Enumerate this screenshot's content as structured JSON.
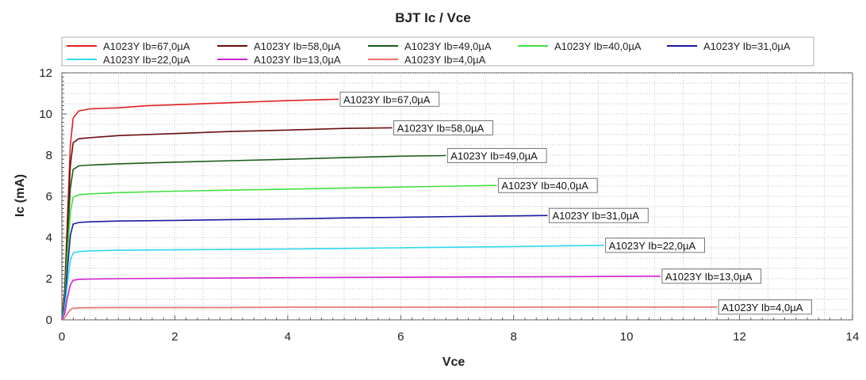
{
  "chart_data": {
    "type": "line",
    "title": "BJT Ic / Vce",
    "xlabel": "Vce",
    "ylabel": "Ic (mA)",
    "xlim": [
      0,
      14
    ],
    "ylim": [
      0,
      12
    ],
    "xticks": [
      0,
      2,
      4,
      6,
      8,
      10,
      12,
      14
    ],
    "yticks": [
      0,
      2,
      4,
      6,
      8,
      10,
      12
    ],
    "grid": true,
    "legend_position": "top",
    "series": [
      {
        "name": "A1023Y Ib=67,0µA",
        "color": "#e02020",
        "label": "A1023Y Ib=67,0µA",
        "points": [
          [
            0,
            0
          ],
          [
            0.05,
            1.5
          ],
          [
            0.1,
            5
          ],
          [
            0.15,
            8.5
          ],
          [
            0.2,
            9.8
          ],
          [
            0.3,
            10.15
          ],
          [
            0.5,
            10.25
          ],
          [
            1,
            10.3
          ],
          [
            1.5,
            10.4
          ],
          [
            2,
            10.45
          ],
          [
            3,
            10.55
          ],
          [
            4,
            10.65
          ],
          [
            4.9,
            10.72
          ]
        ]
      },
      {
        "name": "A1023Y Ib=58,0µA",
        "color": "#6b0f0f",
        "label": "A1023Y Ib=58,0µA",
        "points": [
          [
            0,
            0
          ],
          [
            0.05,
            1.3
          ],
          [
            0.1,
            4.5
          ],
          [
            0.15,
            7.5
          ],
          [
            0.2,
            8.6
          ],
          [
            0.3,
            8.8
          ],
          [
            0.5,
            8.85
          ],
          [
            1,
            8.95
          ],
          [
            2,
            9.05
          ],
          [
            3,
            9.15
          ],
          [
            4,
            9.22
          ],
          [
            5,
            9.3
          ],
          [
            5.85,
            9.33
          ]
        ]
      },
      {
        "name": "A1023Y Ib=49,0µA",
        "color": "#1a5c1a",
        "label": "A1023Y Ib=49,0µA",
        "points": [
          [
            0,
            0
          ],
          [
            0.05,
            1.1
          ],
          [
            0.1,
            3.8
          ],
          [
            0.15,
            6.4
          ],
          [
            0.2,
            7.3
          ],
          [
            0.3,
            7.48
          ],
          [
            0.5,
            7.52
          ],
          [
            1,
            7.58
          ],
          [
            2,
            7.66
          ],
          [
            3,
            7.73
          ],
          [
            4,
            7.8
          ],
          [
            5,
            7.88
          ],
          [
            6,
            7.95
          ],
          [
            6.8,
            7.98
          ]
        ]
      },
      {
        "name": "A1023Y Ib=40,0µA",
        "color": "#40e040",
        "label": "A1023Y Ib=40,0µA",
        "points": [
          [
            0,
            0
          ],
          [
            0.05,
            0.9
          ],
          [
            0.1,
            3.2
          ],
          [
            0.15,
            5.2
          ],
          [
            0.2,
            5.95
          ],
          [
            0.3,
            6.08
          ],
          [
            0.5,
            6.12
          ],
          [
            1,
            6.18
          ],
          [
            2,
            6.25
          ],
          [
            3,
            6.3
          ],
          [
            4,
            6.35
          ],
          [
            5,
            6.4
          ],
          [
            6,
            6.45
          ],
          [
            7,
            6.5
          ],
          [
            7.7,
            6.53
          ]
        ]
      },
      {
        "name": "A1023Y Ib=31,0µA",
        "color": "#1a1aa0",
        "label": "A1023Y Ib=31,0µA",
        "points": [
          [
            0,
            0
          ],
          [
            0.05,
            0.7
          ],
          [
            0.1,
            2.5
          ],
          [
            0.15,
            4.1
          ],
          [
            0.2,
            4.65
          ],
          [
            0.3,
            4.73
          ],
          [
            0.5,
            4.76
          ],
          [
            1,
            4.8
          ],
          [
            2,
            4.83
          ],
          [
            3,
            4.87
          ],
          [
            4,
            4.9
          ],
          [
            5,
            4.95
          ],
          [
            6,
            4.98
          ],
          [
            7,
            5.02
          ],
          [
            8,
            5.05
          ],
          [
            8.6,
            5.07
          ]
        ]
      },
      {
        "name": "A1023Y Ib=22,0µA",
        "color": "#30d8f0",
        "label": "A1023Y Ib=22,0µA",
        "points": [
          [
            0,
            0
          ],
          [
            0.05,
            0.5
          ],
          [
            0.1,
            1.8
          ],
          [
            0.15,
            2.9
          ],
          [
            0.2,
            3.25
          ],
          [
            0.3,
            3.32
          ],
          [
            0.5,
            3.35
          ],
          [
            1,
            3.38
          ],
          [
            2,
            3.4
          ],
          [
            3,
            3.42
          ],
          [
            4,
            3.44
          ],
          [
            5,
            3.47
          ],
          [
            6,
            3.5
          ],
          [
            7,
            3.53
          ],
          [
            8,
            3.56
          ],
          [
            9,
            3.6
          ],
          [
            9.6,
            3.62
          ]
        ]
      },
      {
        "name": "A1023Y Ib=13,0µA",
        "color": "#d020d0",
        "label": "A1023Y Ib=13,0µA",
        "points": [
          [
            0,
            0
          ],
          [
            0.05,
            0.3
          ],
          [
            0.1,
            1.1
          ],
          [
            0.15,
            1.7
          ],
          [
            0.2,
            1.92
          ],
          [
            0.3,
            1.97
          ],
          [
            0.5,
            1.98
          ],
          [
            1,
            2.0
          ],
          [
            2,
            2.02
          ],
          [
            3,
            2.03
          ],
          [
            4,
            2.05
          ],
          [
            5,
            2.06
          ],
          [
            6,
            2.07
          ],
          [
            7,
            2.08
          ],
          [
            8,
            2.09
          ],
          [
            9,
            2.1
          ],
          [
            10,
            2.11
          ],
          [
            10.6,
            2.12
          ]
        ]
      },
      {
        "name": "A1023Y Ib=4,0µA",
        "color": "#e87070",
        "label": "A1023Y Ib=4,0µA",
        "points": [
          [
            0,
            0
          ],
          [
            0.05,
            0.1
          ],
          [
            0.1,
            0.3
          ],
          [
            0.15,
            0.5
          ],
          [
            0.2,
            0.56
          ],
          [
            0.3,
            0.58
          ],
          [
            0.5,
            0.59
          ],
          [
            1,
            0.6
          ],
          [
            2,
            0.6
          ],
          [
            3,
            0.6
          ],
          [
            4,
            0.61
          ],
          [
            5,
            0.61
          ],
          [
            6,
            0.61
          ],
          [
            7,
            0.61
          ],
          [
            8,
            0.61
          ],
          [
            9,
            0.62
          ],
          [
            10,
            0.62
          ],
          [
            11,
            0.62
          ],
          [
            11.6,
            0.62
          ]
        ]
      }
    ]
  }
}
